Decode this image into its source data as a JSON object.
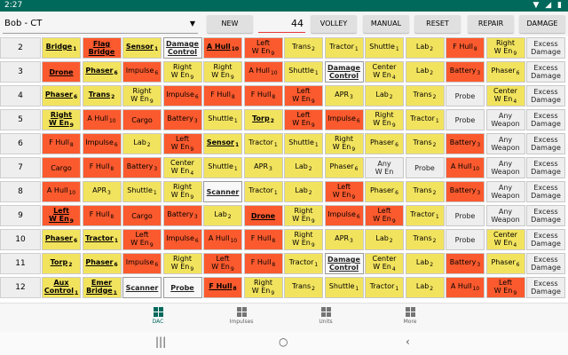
{
  "status_bar": {
    "time": "2:27",
    "icons": "▼ ◢ ▮"
  },
  "toolbar": {
    "ship": "Bob - CT",
    "new_label": "NEW",
    "value": "44",
    "volley_label": "VOLLEY",
    "manual_label": "MANUAL",
    "reset_label": "RESET",
    "repair_label": "REPAIR",
    "damage_label": "DAMAGE"
  },
  "colors": {
    "yellow": "#f2e35e",
    "orange": "#fb5a2e",
    "gray": "#eeeeee",
    "accent": "#00695c"
  },
  "rows": [
    {
      "num": "2",
      "cells": [
        {
          "t": "Bridge",
          "s": "1",
          "c": "y",
          "b": true
        },
        {
          "t": "Flag\nBridge",
          "c": "o",
          "b": true
        },
        {
          "t": "Sensor",
          "s": "1",
          "c": "y",
          "b": true
        },
        {
          "t": "Damage\nControl",
          "c": "w",
          "b": true
        },
        {
          "t": "A Hull",
          "s": "10",
          "c": "o",
          "b": true
        },
        {
          "t": "Left\nW En",
          "s": "9",
          "c": "o"
        },
        {
          "t": "Trans",
          "s": "2",
          "c": "y"
        },
        {
          "t": "Tractor",
          "s": "1",
          "c": "y"
        },
        {
          "t": "Shuttle",
          "s": "1",
          "c": "y"
        },
        {
          "t": "Lab",
          "s": "2",
          "c": "y"
        },
        {
          "t": "F Hull",
          "s": "8",
          "c": "o"
        },
        {
          "t": "Right\nW En",
          "s": "9",
          "c": "y"
        },
        {
          "t": "Excess\nDamage",
          "c": "w"
        }
      ]
    },
    {
      "num": "3",
      "cells": [
        {
          "t": "Drone",
          "c": "o",
          "b": true
        },
        {
          "t": "Phaser",
          "s": "6",
          "c": "y",
          "b": true
        },
        {
          "t": "Impulse",
          "s": "6",
          "c": "o"
        },
        {
          "t": "Right\nW En",
          "s": "9",
          "c": "y"
        },
        {
          "t": "Right\nW En",
          "s": "9",
          "c": "y"
        },
        {
          "t": "A Hull",
          "s": "10",
          "c": "o"
        },
        {
          "t": "Shuttle",
          "s": "1",
          "c": "y"
        },
        {
          "t": "Damage\nControl",
          "c": "w",
          "b": true
        },
        {
          "t": "Center\nW En",
          "s": "4",
          "c": "y"
        },
        {
          "t": "Lab",
          "s": "2",
          "c": "y"
        },
        {
          "t": "Battery",
          "s": "3",
          "c": "o"
        },
        {
          "t": "Phaser",
          "s": "6",
          "c": "y"
        },
        {
          "t": "Excess\nDamage",
          "c": "w"
        }
      ]
    },
    {
      "num": "4",
      "cells": [
        {
          "t": "Phaser",
          "s": "6",
          "c": "y",
          "b": true
        },
        {
          "t": "Trans",
          "s": "2",
          "c": "y",
          "b": true
        },
        {
          "t": "Right\nW En",
          "s": "9",
          "c": "y"
        },
        {
          "t": "Impulse",
          "s": "6",
          "c": "o"
        },
        {
          "t": "F Hull",
          "s": "8",
          "c": "o"
        },
        {
          "t": "F Hull",
          "s": "8",
          "c": "o"
        },
        {
          "t": "Left\nW En",
          "s": "9",
          "c": "o"
        },
        {
          "t": "APR",
          "s": "3",
          "c": "y"
        },
        {
          "t": "Lab",
          "s": "2",
          "c": "y"
        },
        {
          "t": "Trans",
          "s": "2",
          "c": "y"
        },
        {
          "t": "Probe",
          "c": "w"
        },
        {
          "t": "Center\nW En",
          "s": "4",
          "c": "y"
        },
        {
          "t": "Excess\nDamage",
          "c": "w"
        }
      ]
    },
    {
      "num": "5",
      "cells": [
        {
          "t": "Right\nW En",
          "s": "9",
          "c": "y",
          "b": true
        },
        {
          "t": "A Hull",
          "s": "10",
          "c": "o"
        },
        {
          "t": "Cargo",
          "c": "o"
        },
        {
          "t": "Battery",
          "s": "3",
          "c": "o"
        },
        {
          "t": "Shuttle",
          "s": "1",
          "c": "y"
        },
        {
          "t": "Torp",
          "s": "2",
          "c": "y",
          "b": true
        },
        {
          "t": "Left\nW En",
          "s": "9",
          "c": "o"
        },
        {
          "t": "Impulse",
          "s": "6",
          "c": "o"
        },
        {
          "t": "Right\nW En",
          "s": "9",
          "c": "y"
        },
        {
          "t": "Tractor",
          "s": "1",
          "c": "y"
        },
        {
          "t": "Probe",
          "c": "w"
        },
        {
          "t": "Any\nWeapon",
          "c": "w"
        },
        {
          "t": "Excess\nDamage",
          "c": "w"
        }
      ]
    },
    {
      "num": "6",
      "cells": [
        {
          "t": "F Hull",
          "s": "8",
          "c": "o"
        },
        {
          "t": "Impulse",
          "s": "6",
          "c": "o"
        },
        {
          "t": "Lab",
          "s": "2",
          "c": "y"
        },
        {
          "t": "Left\nW En",
          "s": "9",
          "c": "o"
        },
        {
          "t": "Sensor",
          "s": "1",
          "c": "y",
          "b": true
        },
        {
          "t": "Tractor",
          "s": "1",
          "c": "y"
        },
        {
          "t": "Shuttle",
          "s": "1",
          "c": "y"
        },
        {
          "t": "Right\nW En",
          "s": "9",
          "c": "y"
        },
        {
          "t": "Phaser",
          "s": "6",
          "c": "y"
        },
        {
          "t": "Trans",
          "s": "2",
          "c": "y"
        },
        {
          "t": "Battery",
          "s": "3",
          "c": "o"
        },
        {
          "t": "Any\nWeapon",
          "c": "w"
        },
        {
          "t": "Excess\nDamage",
          "c": "w"
        }
      ]
    },
    {
      "num": "7",
      "cells": [
        {
          "t": "Cargo",
          "c": "o"
        },
        {
          "t": "F Hull",
          "s": "8",
          "c": "o"
        },
        {
          "t": "Battery",
          "s": "3",
          "c": "o"
        },
        {
          "t": "Center\nW En",
          "s": "4",
          "c": "y"
        },
        {
          "t": "Shuttle",
          "s": "1",
          "c": "y"
        },
        {
          "t": "APR",
          "s": "3",
          "c": "y"
        },
        {
          "t": "Lab",
          "s": "2",
          "c": "y"
        },
        {
          "t": "Phaser",
          "s": "6",
          "c": "y"
        },
        {
          "t": "Any\nW En",
          "c": "w"
        },
        {
          "t": "Probe",
          "c": "w"
        },
        {
          "t": "A Hull",
          "s": "10",
          "c": "o"
        },
        {
          "t": "Any\nWeapon",
          "c": "w"
        },
        {
          "t": "Excess\nDamage",
          "c": "w"
        }
      ]
    },
    {
      "num": "8",
      "cells": [
        {
          "t": "A Hull",
          "s": "10",
          "c": "o"
        },
        {
          "t": "APR",
          "s": "3",
          "c": "y"
        },
        {
          "t": "Shuttle",
          "s": "1",
          "c": "y"
        },
        {
          "t": "Right\nW En",
          "s": "9",
          "c": "y"
        },
        {
          "t": "Scanner",
          "c": "w",
          "b": true
        },
        {
          "t": "Tractor",
          "s": "1",
          "c": "y"
        },
        {
          "t": "Lab",
          "s": "2",
          "c": "y"
        },
        {
          "t": "Left\nW En",
          "s": "9",
          "c": "o"
        },
        {
          "t": "Phaser",
          "s": "6",
          "c": "y"
        },
        {
          "t": "Trans",
          "s": "2",
          "c": "y"
        },
        {
          "t": "Battery",
          "s": "3",
          "c": "o"
        },
        {
          "t": "Any\nWeapon",
          "c": "w"
        },
        {
          "t": "Excess\nDamage",
          "c": "w"
        }
      ]
    },
    {
      "num": "9",
      "cells": [
        {
          "t": "Left\nW En",
          "s": "9",
          "c": "o",
          "b": true
        },
        {
          "t": "F Hull",
          "s": "8",
          "c": "o"
        },
        {
          "t": "Cargo",
          "c": "o"
        },
        {
          "t": "Battery",
          "s": "3",
          "c": "o"
        },
        {
          "t": "Lab",
          "s": "2",
          "c": "y"
        },
        {
          "t": "Drone",
          "c": "o",
          "b": true
        },
        {
          "t": "Right\nW En",
          "s": "9",
          "c": "y"
        },
        {
          "t": "Impulse",
          "s": "6",
          "c": "o"
        },
        {
          "t": "Left\nW En",
          "s": "9",
          "c": "o"
        },
        {
          "t": "Tractor",
          "s": "1",
          "c": "y"
        },
        {
          "t": "Probe",
          "c": "w"
        },
        {
          "t": "Any\nWeapon",
          "c": "w"
        },
        {
          "t": "Excess\nDamage",
          "c": "w"
        }
      ]
    },
    {
      "num": "10",
      "cells": [
        {
          "t": "Phaser",
          "s": "6",
          "c": "y",
          "b": true
        },
        {
          "t": "Tractor",
          "s": "1",
          "c": "y",
          "b": true
        },
        {
          "t": "Left\nW En",
          "s": "9",
          "c": "o"
        },
        {
          "t": "Impulse",
          "s": "6",
          "c": "o"
        },
        {
          "t": "A Hull",
          "s": "10",
          "c": "o"
        },
        {
          "t": "F Hull",
          "s": "8",
          "c": "o"
        },
        {
          "t": "Right\nW En",
          "s": "9",
          "c": "y"
        },
        {
          "t": "APR",
          "s": "3",
          "c": "y"
        },
        {
          "t": "Lab",
          "s": "2",
          "c": "y"
        },
        {
          "t": "Trans",
          "s": "2",
          "c": "y"
        },
        {
          "t": "Probe",
          "c": "w"
        },
        {
          "t": "Center\nW En",
          "s": "4",
          "c": "y"
        },
        {
          "t": "Excess\nDamage",
          "c": "w"
        }
      ]
    },
    {
      "num": "11",
      "cells": [
        {
          "t": "Torp",
          "s": "2",
          "c": "y",
          "b": true
        },
        {
          "t": "Phaser",
          "s": "6",
          "c": "y",
          "b": true
        },
        {
          "t": "Impulse",
          "s": "6",
          "c": "o"
        },
        {
          "t": "Right\nW En",
          "s": "9",
          "c": "y"
        },
        {
          "t": "Left\nW En",
          "s": "9",
          "c": "o"
        },
        {
          "t": "F Hull",
          "s": "8",
          "c": "o"
        },
        {
          "t": "Tractor",
          "s": "1",
          "c": "y"
        },
        {
          "t": "Damage\nControl",
          "c": "w",
          "b": true
        },
        {
          "t": "Center\nW En",
          "s": "4",
          "c": "y"
        },
        {
          "t": "Lab",
          "s": "2",
          "c": "y"
        },
        {
          "t": "Battery",
          "s": "3",
          "c": "o"
        },
        {
          "t": "Phaser",
          "s": "6",
          "c": "y"
        },
        {
          "t": "Excess\nDamage",
          "c": "w"
        }
      ]
    },
    {
      "num": "12",
      "cells": [
        {
          "t": "Aux\nControl",
          "s": "1",
          "c": "y",
          "b": true
        },
        {
          "t": "Emer\nBridge",
          "s": "1",
          "c": "y",
          "b": true
        },
        {
          "t": "Scanner",
          "c": "w",
          "b": true
        },
        {
          "t": "Probe",
          "c": "w",
          "b": true
        },
        {
          "t": "F Hull",
          "s": "8",
          "c": "o",
          "b": true
        },
        {
          "t": "Right\nW En",
          "s": "9",
          "c": "y"
        },
        {
          "t": "Trans",
          "s": "2",
          "c": "y"
        },
        {
          "t": "Shuttle",
          "s": "1",
          "c": "y"
        },
        {
          "t": "Tractor",
          "s": "1",
          "c": "y"
        },
        {
          "t": "Lab",
          "s": "2",
          "c": "y"
        },
        {
          "t": "A Hull",
          "s": "10",
          "c": "o"
        },
        {
          "t": "Left\nW En",
          "s": "9",
          "c": "o"
        },
        {
          "t": "Excess\nDamage",
          "c": "w"
        }
      ]
    }
  ],
  "nav": [
    {
      "label": "DAC",
      "active": true
    },
    {
      "label": "Impulses",
      "active": false
    },
    {
      "label": "Units",
      "active": false
    },
    {
      "label": "More",
      "active": false
    }
  ],
  "system_nav": {
    "recents": "|||",
    "home": "○",
    "back": "‹"
  }
}
